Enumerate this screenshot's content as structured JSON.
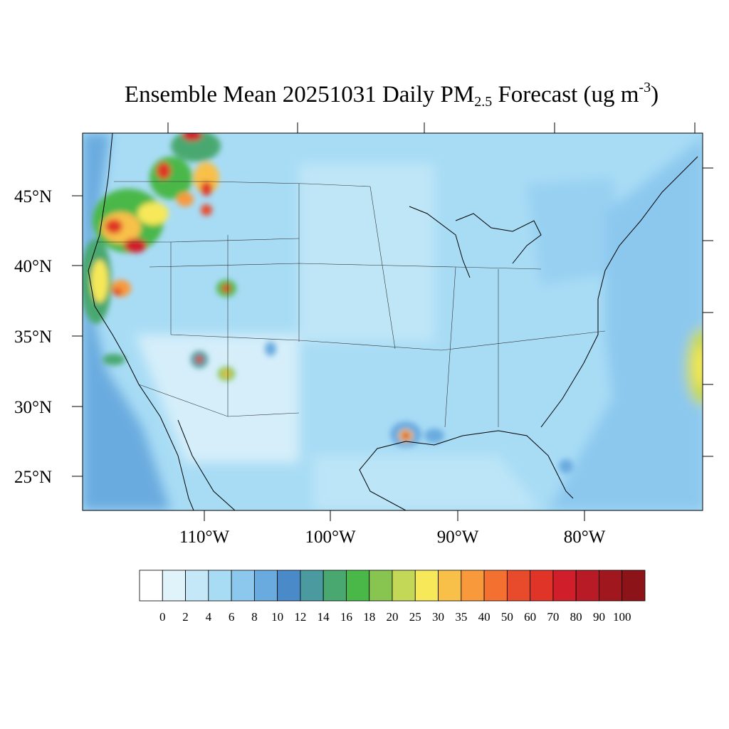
{
  "title": {
    "prefix": "Ensemble Mean 20251031 Daily PM",
    "subscript": "2.5",
    "middle": " Forecast (ug m",
    "superscript": "-3",
    "suffix": ")"
  },
  "map": {
    "lat_labels": [
      "45°N",
      "40°N",
      "35°N",
      "30°N",
      "25°N"
    ],
    "lon_labels": [
      "110°W",
      "100°W",
      "90°W",
      "80°W"
    ],
    "background_color": "#a8dcf5",
    "ocean_color": "#8cc8ee"
  },
  "colorbar": {
    "labels": [
      "0",
      "2",
      "4",
      "6",
      "8",
      "10",
      "12",
      "14",
      "16",
      "18",
      "20",
      "25",
      "30",
      "35",
      "40",
      "50",
      "60",
      "70",
      "80",
      "90",
      "100"
    ],
    "colors": [
      "#ffffff",
      "#e0f3fb",
      "#c4e8f8",
      "#a8dcf5",
      "#8cc8ee",
      "#6aabdf",
      "#4a8ac8",
      "#4a9aa0",
      "#48a870",
      "#4ab848",
      "#88c450",
      "#c4d858",
      "#f6e858",
      "#f8c048",
      "#f89a3c",
      "#f47030",
      "#e84a2c",
      "#e03428",
      "#d01e2a",
      "#b81a26",
      "#a0181e",
      "#8c1418"
    ]
  }
}
